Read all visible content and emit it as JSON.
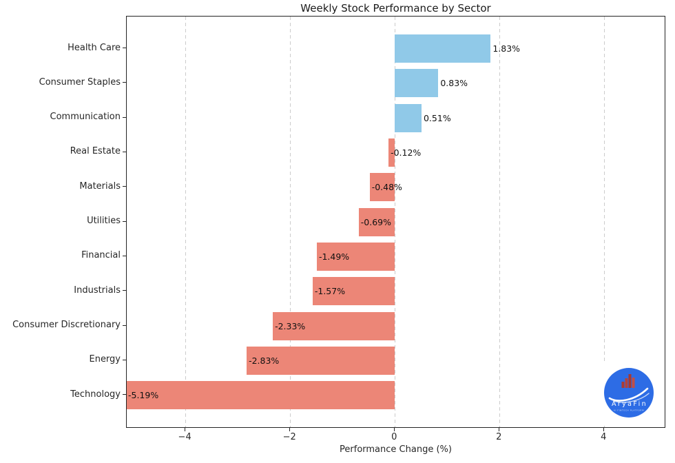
{
  "chart_data": {
    "type": "bar",
    "orientation": "horizontal",
    "title": "Weekly Stock Performance by Sector",
    "xlabel": "Performance Change (%)",
    "categories": [
      "Health Care",
      "Consumer Staples",
      "Communication",
      "Real Estate",
      "Materials",
      "Utilities",
      "Financial",
      "Industrials",
      "Consumer Discretionary",
      "Energy",
      "Technology"
    ],
    "values": [
      1.83,
      0.83,
      0.51,
      -0.12,
      -0.48,
      -0.69,
      -1.49,
      -1.57,
      -2.33,
      -2.83,
      -5.19
    ],
    "value_labels": [
      "1.83%",
      "0.83%",
      "0.51%",
      "-0.12%",
      "-0.48%",
      "-0.69%",
      "-1.49%",
      "-1.57%",
      "-2.33%",
      "-2.83%",
      "-5.19%"
    ],
    "xticks": [
      -4,
      -2,
      0,
      2,
      4
    ],
    "xtick_labels": [
      "−4",
      "−2",
      "0",
      "2",
      "4"
    ],
    "xlim": [
      -5.12,
      5.18
    ],
    "grid": "vertical-dashed",
    "legend": "none",
    "positive_color": "#90C9E8",
    "negative_color": "#EC8677",
    "gridline_color": "#cbcbcb"
  },
  "logo": {
    "name": "AryaFin",
    "tagline": "AI FINTECH PLATFORM",
    "circle_color": "#2D6CE5",
    "icon": "bar-chart-icon"
  }
}
